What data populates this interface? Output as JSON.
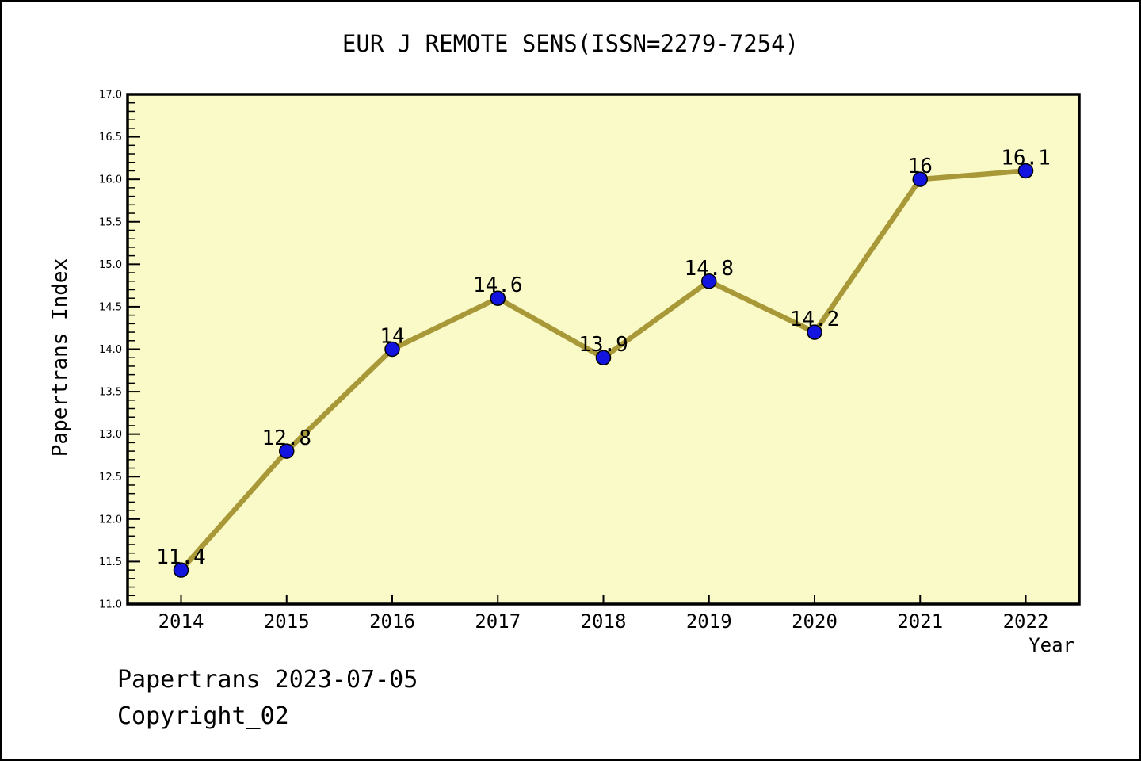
{
  "page": {
    "footer_line1": "Papertrans 2023-07-05",
    "footer_line2": "Copyright_02"
  },
  "chart_data": {
    "type": "line",
    "title": "EUR J REMOTE SENS(ISSN=2279-7254)",
    "xlabel": "Year",
    "ylabel": "Papertrans Index",
    "x": [
      2014,
      2015,
      2016,
      2017,
      2018,
      2019,
      2020,
      2021,
      2022
    ],
    "values": [
      11.4,
      12.8,
      14,
      14.6,
      13.9,
      14.8,
      14.2,
      16,
      16.1
    ],
    "point_labels": [
      "11.4",
      "12.8",
      "14",
      "14.6",
      "13.9",
      "14.8",
      "14.2",
      "16",
      "16.1"
    ],
    "ylim": [
      11.0,
      17.0
    ],
    "y_major_step": 0.5,
    "y_minor_step": 0.1,
    "y_tick_labels": [
      "11.0",
      "11.5",
      "12.0",
      "12.5",
      "13.0",
      "13.5",
      "14.0",
      "14.5",
      "15.0",
      "15.5",
      "16.0",
      "16.5",
      "17.0"
    ],
    "grid": false,
    "legend": "none",
    "colors": {
      "plot_background": "#FAFAC8",
      "line": "#A89838",
      "marker": "#1414E0",
      "marker_edge": "#000000",
      "axis": "#000000",
      "text": "#000000",
      "page_background": "#FFFFFF"
    }
  }
}
